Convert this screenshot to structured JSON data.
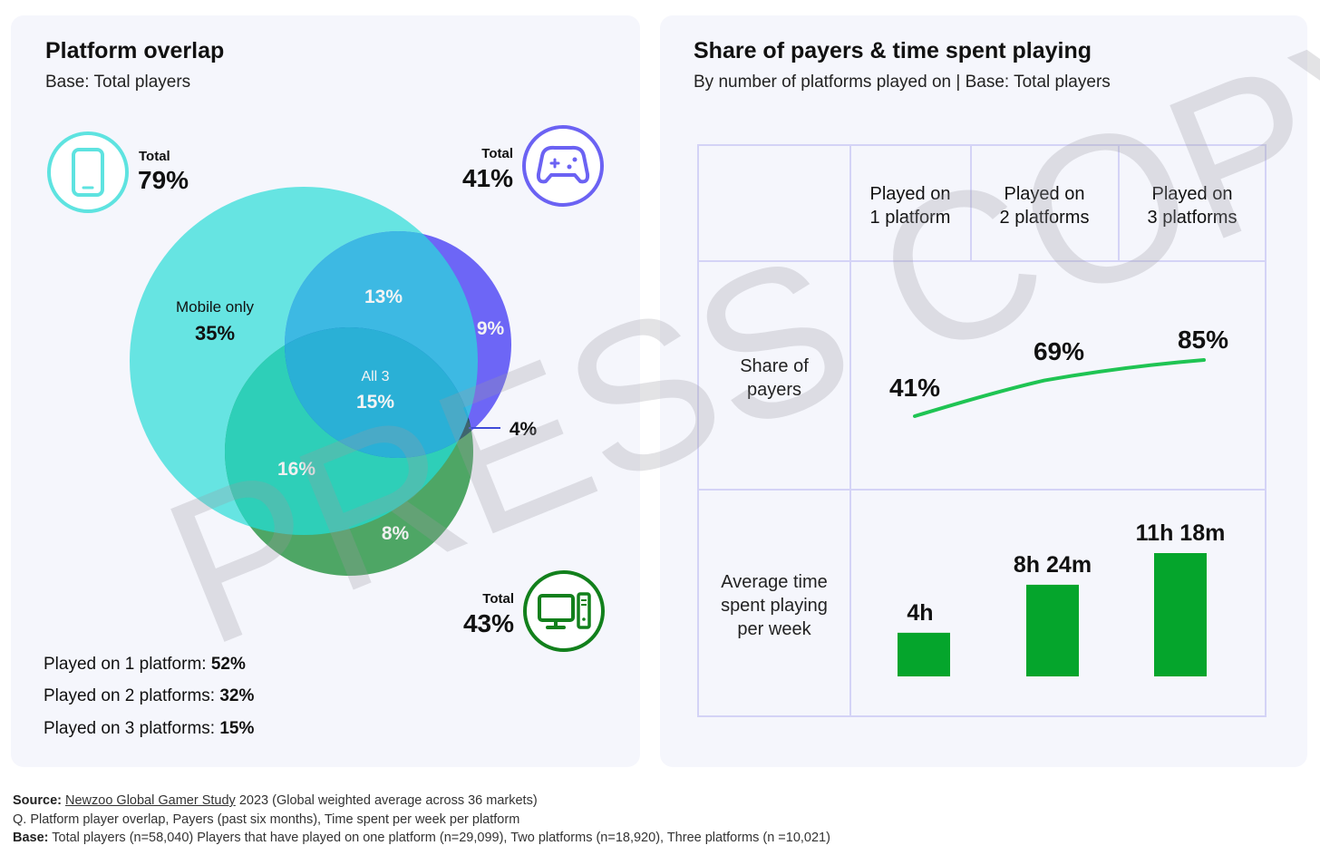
{
  "left": {
    "title": "Platform overlap",
    "subtitle": "Base: Total players",
    "platforms": [
      {
        "name": "mobile",
        "total_label": "Total",
        "total": "79%",
        "color": "#5ee3e0"
      },
      {
        "name": "console",
        "total_label": "Total",
        "total": "41%",
        "color": "#6b62f3"
      },
      {
        "name": "pc",
        "total_label": "Total",
        "total": "43%",
        "color": "#2d8a34"
      }
    ],
    "stats": [
      {
        "label": "Played on 1 platform: ",
        "value": "52%"
      },
      {
        "label": "Played on 2 platforms: ",
        "value": "32%"
      },
      {
        "label": "Played on 3 platforms: ",
        "value": "15%"
      }
    ]
  },
  "right": {
    "title": "Share of payers & time spent playing",
    "subtitle": "By number of platforms played on | Base: Total players",
    "col_headers": [
      [
        "Played on",
        "1 platform"
      ],
      [
        "Played on",
        "2 platforms"
      ],
      [
        "Played on",
        "3 platforms"
      ]
    ],
    "row_labels": [
      [
        "Share of",
        "payers"
      ],
      [
        "Average time",
        "spent playing",
        "per week"
      ]
    ]
  },
  "chart_data": [
    {
      "type": "venn",
      "title": "Platform overlap",
      "subtitle": "Base: Total players",
      "sets": [
        {
          "name": "Mobile",
          "total": 79
        },
        {
          "name": "Console",
          "total": 41
        },
        {
          "name": "PC",
          "total": 43
        }
      ],
      "regions": [
        {
          "sets": [
            "Mobile"
          ],
          "label": "Mobile only",
          "value": 35,
          "text": "35%"
        },
        {
          "sets": [
            "Mobile",
            "Console"
          ],
          "value": 13,
          "text": "13%"
        },
        {
          "sets": [
            "Console"
          ],
          "value": 9,
          "text": "9%"
        },
        {
          "sets": [
            "Mobile",
            "Console",
            "PC"
          ],
          "label": "All 3",
          "value": 15,
          "text": "15%"
        },
        {
          "sets": [
            "Console",
            "PC"
          ],
          "value": 4,
          "text": "4%"
        },
        {
          "sets": [
            "Mobile",
            "PC"
          ],
          "value": 16,
          "text": "16%"
        },
        {
          "sets": [
            "PC"
          ],
          "value": 8,
          "text": "8%"
        }
      ]
    },
    {
      "type": "line",
      "title": "Share of payers",
      "categories": [
        "Played on 1 platform",
        "Played on 2 platforms",
        "Played on 3 platforms"
      ],
      "values": [
        41,
        69,
        85
      ],
      "labels": [
        "41%",
        "69%",
        "85%"
      ],
      "color": "#1fc453"
    },
    {
      "type": "bar",
      "title": "Average time spent playing per week",
      "categories": [
        "Played on 1 platform",
        "Played on 2 platforms",
        "Played on 3 platforms"
      ],
      "values_hours": [
        4.0,
        8.4,
        11.3
      ],
      "labels": [
        "4h",
        "8h 24m",
        "11h 18m"
      ],
      "color": "#05a52c"
    }
  ],
  "watermark": "PRESS COPY",
  "footer": {
    "line1_bold": "Source: ",
    "line1_link": "Newzoo Global Gamer Study",
    "line1_rest": " 2023 (Global weighted average across 36 markets)",
    "line2": "Q. Platform player overlap, Payers (past six months), Time spent per week per platform",
    "line3_bold": "Base:",
    "line3_rest": " Total players (n=58,040) Players that have played on one platform (n=29,099), Two platforms (n=18,920), Three platforms (n =10,021)"
  }
}
